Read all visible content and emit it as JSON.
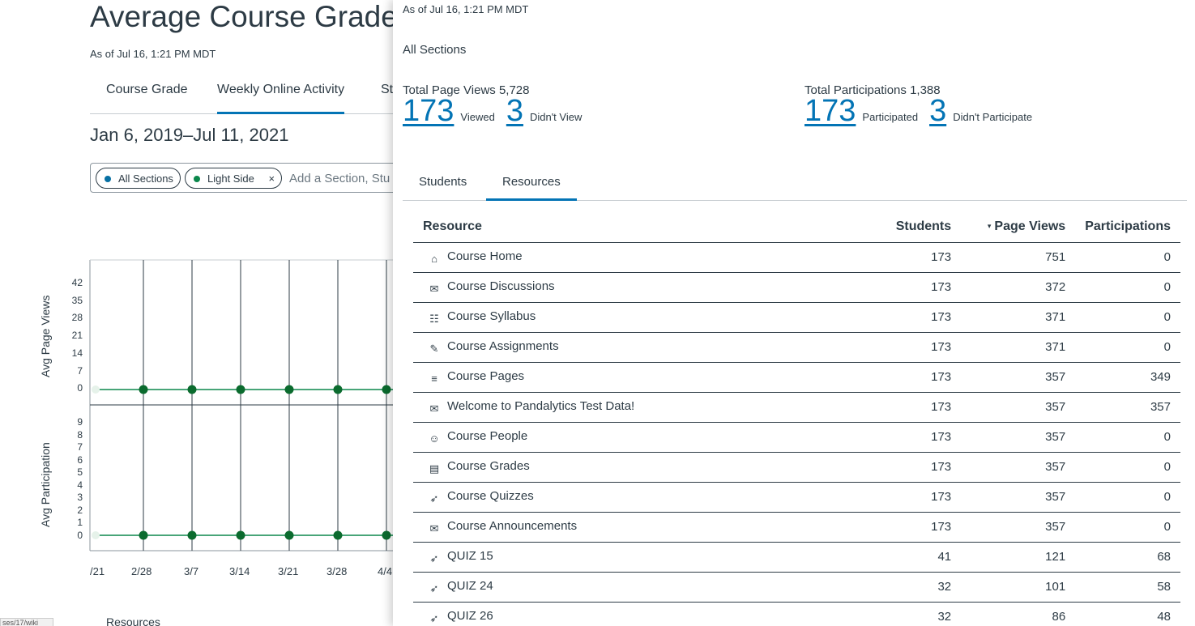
{
  "background": {
    "title": "Average Course Grade",
    "as_of": "As of Jul 16, 1:21 PM MDT",
    "tabs": [
      "Course Grade",
      "Weekly Online Activity",
      "St"
    ],
    "date_range": "Jan 6, 2019–Jul 11, 2021",
    "filter": {
      "chips": [
        {
          "label": "All Sections",
          "color": "#0770A3"
        },
        {
          "label": "Light Side",
          "color": "#0B874B",
          "removable": "×"
        }
      ],
      "placeholder": "Add a Section, Stu"
    },
    "chart_top": {
      "ylabel": "Avg Page Views",
      "ticks": [
        "42",
        "35",
        "28",
        "21",
        "14",
        "7",
        "0"
      ]
    },
    "chart_bottom": {
      "ylabel": "Avg Participation",
      "ticks": [
        "9",
        "8",
        "7",
        "6",
        "5",
        "4",
        "3",
        "2",
        "1",
        "0"
      ]
    },
    "x_ticks": [
      "/21",
      "2/28",
      "3/7",
      "3/14",
      "3/21",
      "3/28",
      "4/4"
    ],
    "footer_heading": "Resources",
    "status_url": "ses/17/wiki"
  },
  "panel": {
    "as_of": "As of Jul 16, 1:21 PM MDT",
    "section": "All Sections",
    "page_views": {
      "title": "Total Page Views 5,728",
      "viewed": "173",
      "viewed_label": "Viewed",
      "not_viewed": "3",
      "not_viewed_label": "Didn't View"
    },
    "participations": {
      "title": "Total Participations 1,388",
      "participated": "173",
      "participated_label": "Participated",
      "not_participated": "3",
      "not_participated_label": "Didn't Participate"
    },
    "tabs": [
      "Students",
      "Resources"
    ],
    "table": {
      "headers": {
        "resource": "Resource",
        "students": "Students",
        "page_views": "Page Views",
        "participations": "Participations"
      },
      "sort_indicator": "▾",
      "rows": [
        {
          "icon": "home-icon",
          "glyph": "⌂",
          "name": "Course Home",
          "students": "173",
          "page_views": "751",
          "participations": "0"
        },
        {
          "icon": "discussion-icon",
          "glyph": "✉",
          "name": "Course Discussions",
          "students": "173",
          "page_views": "372",
          "participations": "0"
        },
        {
          "icon": "syllabus-icon",
          "glyph": "☷",
          "name": "Course Syllabus",
          "students": "173",
          "page_views": "371",
          "participations": "0"
        },
        {
          "icon": "assignment-icon",
          "glyph": "✎",
          "name": "Course Assignments",
          "students": "173",
          "page_views": "371",
          "participations": "0"
        },
        {
          "icon": "document-icon",
          "glyph": "≡",
          "name": "Course Pages",
          "students": "173",
          "page_views": "357",
          "participations": "349"
        },
        {
          "icon": "discussion-icon",
          "glyph": "✉",
          "name": "Welcome to Pandalytics Test Data!",
          "students": "173",
          "page_views": "357",
          "participations": "357"
        },
        {
          "icon": "user-icon",
          "glyph": "☺",
          "name": "Course People",
          "students": "173",
          "page_views": "357",
          "participations": "0"
        },
        {
          "icon": "gradebook-icon",
          "glyph": "▤",
          "name": "Course Grades",
          "students": "173",
          "page_views": "357",
          "participations": "0"
        },
        {
          "icon": "quiz-icon",
          "glyph": "➶",
          "name": "Course Quizzes",
          "students": "173",
          "page_views": "357",
          "participations": "0"
        },
        {
          "icon": "announcement-icon",
          "glyph": "✉",
          "name": "Course Announcements",
          "students": "173",
          "page_views": "357",
          "participations": "0"
        },
        {
          "icon": "quiz-icon",
          "glyph": "➶",
          "name": "QUIZ 15",
          "students": "41",
          "page_views": "121",
          "participations": "68"
        },
        {
          "icon": "quiz-icon",
          "glyph": "➶",
          "name": "QUIZ 24",
          "students": "32",
          "page_views": "101",
          "participations": "58"
        },
        {
          "icon": "quiz-icon",
          "glyph": "➶",
          "name": "QUIZ 26",
          "students": "32",
          "page_views": "86",
          "participations": "48"
        }
      ]
    }
  }
}
